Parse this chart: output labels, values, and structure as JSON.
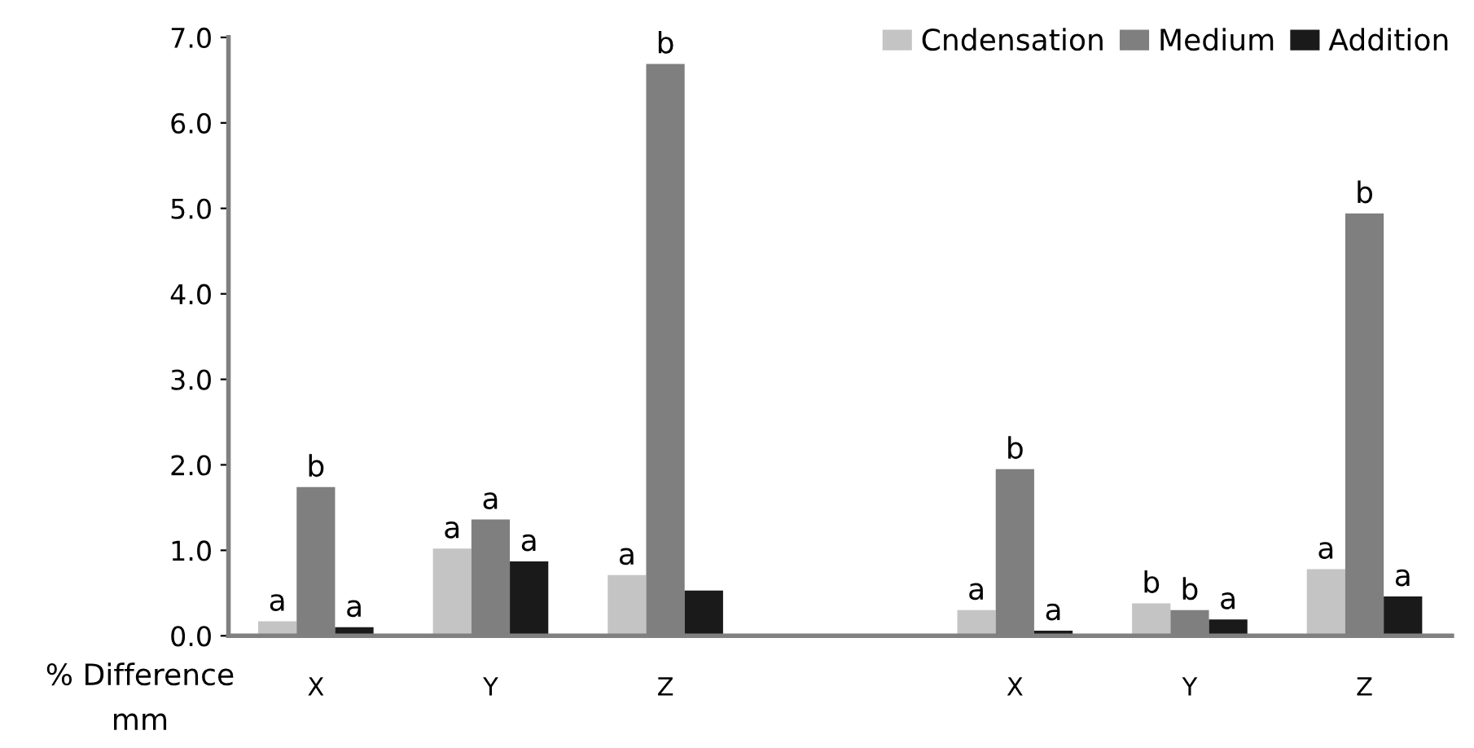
{
  "chart_data": {
    "type": "bar",
    "categories": [
      "X",
      "Y",
      "Z",
      null,
      "X",
      "Y",
      "Z"
    ],
    "series": [
      {
        "name": "Cndensation",
        "color": "#c4c4c4",
        "values": [
          0.17,
          1.02,
          0.71,
          null,
          0.3,
          0.38,
          0.78
        ],
        "value_labels": [
          "a",
          "a",
          "a",
          null,
          "a",
          "b",
          "a"
        ]
      },
      {
        "name": "Medium",
        "color": "#7f7f7f",
        "values": [
          1.74,
          1.36,
          6.69,
          null,
          1.95,
          0.3,
          4.94
        ],
        "value_labels": [
          "b",
          "a",
          "b",
          null,
          "b",
          "b",
          "b"
        ]
      },
      {
        "name": "Addition",
        "color": "#1a1a1a",
        "values": [
          0.1,
          0.87,
          0.53,
          null,
          0.06,
          0.19,
          0.46
        ],
        "value_labels": [
          "a",
          "a",
          null,
          null,
          "a",
          "a",
          "a"
        ]
      }
    ],
    "ylim": [
      0,
      7
    ],
    "yticks": [
      {
        "value": 0,
        "label": "0.0"
      },
      {
        "value": 1,
        "label": "1.0"
      },
      {
        "value": 2,
        "label": "2.0"
      },
      {
        "value": 3,
        "label": "3.0"
      },
      {
        "value": 4,
        "label": "4.0"
      },
      {
        "value": 5,
        "label": "5.0"
      },
      {
        "value": 6,
        "label": "6.0"
      },
      {
        "value": 7,
        "label": "7.0"
      }
    ],
    "annotations": [
      "% Difference",
      "mm"
    ],
    "grid": false,
    "legend": "top right"
  }
}
